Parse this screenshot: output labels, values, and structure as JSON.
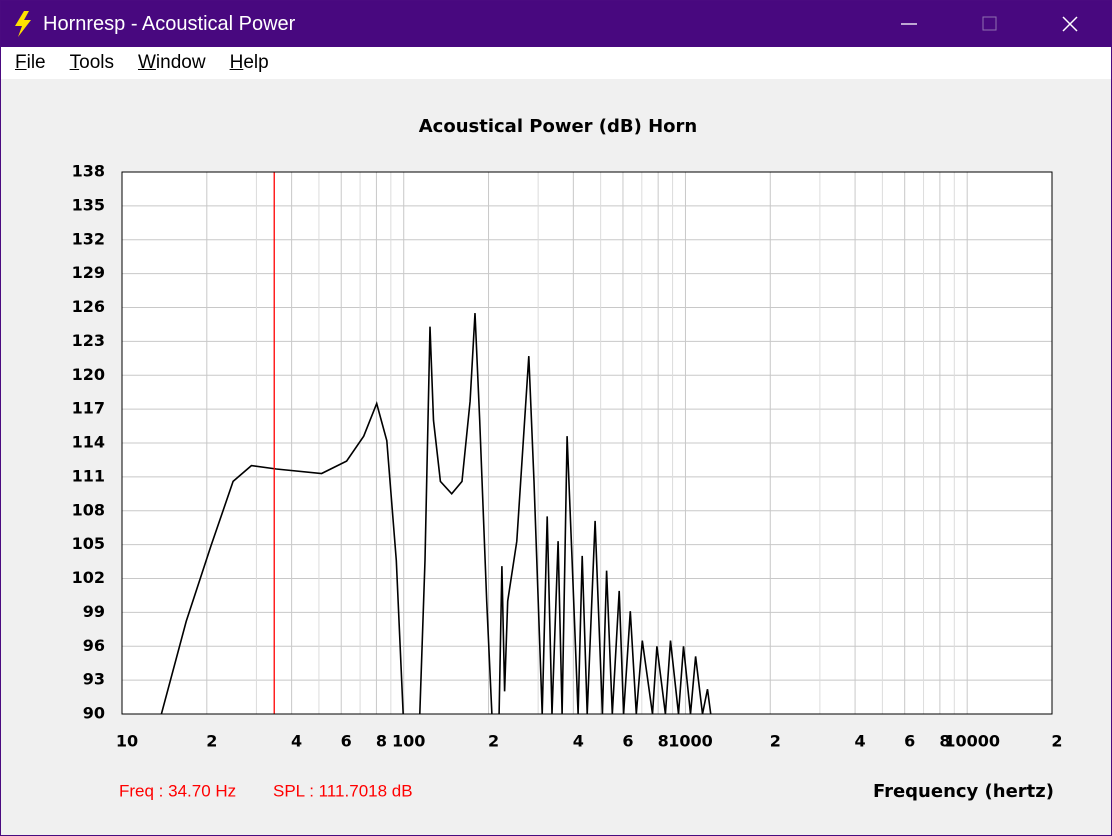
{
  "window": {
    "title": "Hornresp - Acoustical Power",
    "menu": [
      "File",
      "Tools",
      "Window",
      "Help"
    ]
  },
  "chart_data": {
    "type": "line",
    "title": "Acoustical Power (dB)   Horn",
    "x_label": "Frequency (hertz)",
    "x_scale": "log",
    "grid": true,
    "xlim": [
      10,
      20000
    ],
    "xticks": [
      10,
      {
        "value": 20,
        "label": "2"
      },
      {
        "value": 40,
        "label": "4"
      },
      {
        "value": 60,
        "label": "6"
      },
      {
        "value": 80,
        "label": "8"
      },
      100,
      {
        "value": 200,
        "label": "2"
      },
      {
        "value": 400,
        "label": "4"
      },
      {
        "value": 600,
        "label": "6"
      },
      {
        "value": 800,
        "label": "8"
      },
      1000,
      {
        "value": 2000,
        "label": "2"
      },
      {
        "value": 4000,
        "label": "4"
      },
      {
        "value": 6000,
        "label": "6"
      },
      {
        "value": 8000,
        "label": "8"
      },
      10000,
      {
        "value": 20000,
        "label": "2"
      }
    ],
    "x_minor_grid": [
      30,
      50,
      70,
      90,
      300,
      500,
      700,
      900,
      3000,
      5000,
      7000,
      9000
    ],
    "ylim": [
      90,
      138
    ],
    "yticks": [
      90,
      93,
      96,
      99,
      102,
      105,
      108,
      111,
      114,
      117,
      120,
      123,
      126,
      129,
      132,
      135,
      138
    ],
    "series": [
      {
        "color": "#000000",
        "x": [
          13.8,
          16.9,
          20.7,
          24.8,
          28.8,
          35.3,
          51.1,
          62.7,
          72.1,
          80.2,
          87.1,
          94.1,
          102,
          114,
          119,
          124,
          127.5,
          135,
          148,
          161,
          172,
          179,
          186,
          197,
          210,
          218,
          223,
          228,
          234,
          252,
          278,
          290,
          310,
          323,
          336,
          353,
          365,
          380,
          396,
          416,
          430,
          448,
          478,
          507,
          525,
          550,
          582,
          603,
          637,
          669,
          703,
          764,
          792,
          849,
          885,
          945,
          984,
          1042,
          1086,
          1149,
          1197,
          1260
        ],
        "values": [
          90,
          98.2,
          104.9,
          110.6,
          112.0,
          111.7,
          111.3,
          112.4,
          114.6,
          117.5,
          114.2,
          103.6,
          84,
          90,
          103.6,
          124.3,
          116,
          110.6,
          109.5,
          110.6,
          117.7,
          125.5,
          116,
          100,
          85,
          90,
          103.1,
          92,
          100,
          105.3,
          121.7,
          110.6,
          90,
          107.5,
          90,
          105.3,
          90,
          114.6,
          103.6,
          90,
          104,
          90,
          107.1,
          90,
          102.7,
          90,
          100.9,
          90,
          99.1,
          90,
          96.5,
          90,
          96,
          90,
          96.5,
          90,
          96,
          90,
          95.1,
          90,
          92.2,
          88
        ]
      }
    ],
    "cursor": {
      "x": 34.7,
      "color": "#ff0000",
      "label": "Freq : 34.70 Hz"
    },
    "spl_label": "SPL : 111.7018 dB"
  }
}
